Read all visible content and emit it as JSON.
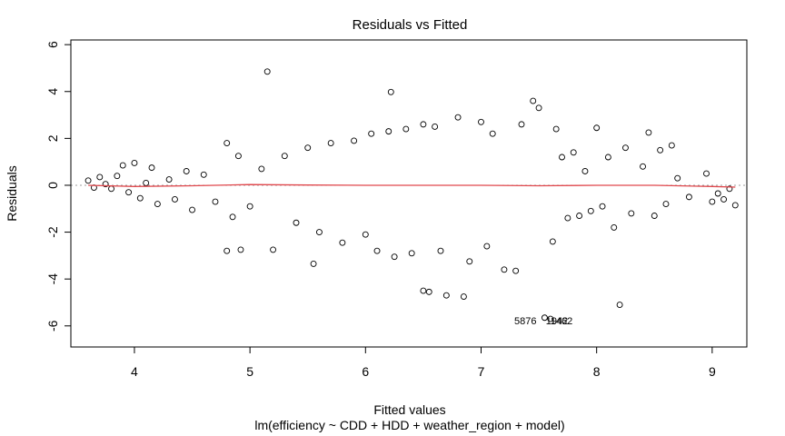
{
  "chart_data": {
    "type": "scatter",
    "title": "Residuals vs Fitted",
    "xlabel": "Fitted values",
    "subtitle": "lm(efficiency ~ CDD + HDD + weather_region + model)",
    "ylabel": "Residuals",
    "xlim": [
      3.45,
      9.3
    ],
    "ylim": [
      -6.9,
      6.2
    ],
    "x_ticks": [
      4,
      5,
      6,
      7,
      8,
      9
    ],
    "y_ticks": [
      -6,
      -4,
      -2,
      0,
      2,
      4,
      6
    ],
    "grid": false,
    "reference_line": {
      "y": 0,
      "style": "dotted",
      "color": "#9e9e9e"
    },
    "smooth_color": "#e0474c",
    "smooth": [
      {
        "x": 3.6,
        "y": 0.0
      },
      {
        "x": 4.0,
        "y": -0.05
      },
      {
        "x": 4.5,
        "y": -0.02
      },
      {
        "x": 5.0,
        "y": 0.03
      },
      {
        "x": 5.5,
        "y": 0.01
      },
      {
        "x": 6.0,
        "y": 0.0
      },
      {
        "x": 6.5,
        "y": 0.0
      },
      {
        "x": 7.0,
        "y": 0.0
      },
      {
        "x": 7.5,
        "y": -0.02
      },
      {
        "x": 8.0,
        "y": 0.0
      },
      {
        "x": 8.5,
        "y": 0.0
      },
      {
        "x": 9.0,
        "y": -0.05
      },
      {
        "x": 9.2,
        "y": -0.08
      }
    ],
    "series": [
      {
        "points": [
          {
            "x": 3.6,
            "y": 0.2
          },
          {
            "x": 3.65,
            "y": -0.1
          },
          {
            "x": 3.7,
            "y": 0.35
          },
          {
            "x": 3.75,
            "y": 0.05
          },
          {
            "x": 3.8,
            "y": -0.15
          },
          {
            "x": 3.85,
            "y": 0.4
          },
          {
            "x": 3.9,
            "y": 0.85
          },
          {
            "x": 3.95,
            "y": -0.3
          },
          {
            "x": 4.0,
            "y": 0.95
          },
          {
            "x": 4.05,
            "y": -0.55
          },
          {
            "x": 4.1,
            "y": 0.1
          },
          {
            "x": 4.15,
            "y": 0.75
          },
          {
            "x": 4.2,
            "y": -0.8
          },
          {
            "x": 4.3,
            "y": 0.25
          },
          {
            "x": 4.35,
            "y": -0.6
          },
          {
            "x": 4.45,
            "y": 0.6
          },
          {
            "x": 4.5,
            "y": -1.05
          },
          {
            "x": 4.6,
            "y": 0.45
          },
          {
            "x": 4.7,
            "y": -0.7
          },
          {
            "x": 4.8,
            "y": 1.8
          },
          {
            "x": 4.85,
            "y": -1.35
          },
          {
            "x": 4.9,
            "y": 1.25
          },
          {
            "x": 4.8,
            "y": -2.8
          },
          {
            "x": 4.92,
            "y": -2.75
          },
          {
            "x": 5.0,
            "y": -0.9
          },
          {
            "x": 5.1,
            "y": 0.7
          },
          {
            "x": 5.15,
            "y": 4.85
          },
          {
            "x": 5.2,
            "y": -2.75
          },
          {
            "x": 5.3,
            "y": 1.25
          },
          {
            "x": 5.4,
            "y": -1.6
          },
          {
            "x": 5.5,
            "y": 1.6
          },
          {
            "x": 5.55,
            "y": -3.35
          },
          {
            "x": 5.6,
            "y": -2.0
          },
          {
            "x": 5.7,
            "y": 1.8
          },
          {
            "x": 5.8,
            "y": -2.45
          },
          {
            "x": 5.9,
            "y": 1.9
          },
          {
            "x": 6.0,
            "y": -2.1
          },
          {
            "x": 6.05,
            "y": 2.2
          },
          {
            "x": 6.1,
            "y": -2.8
          },
          {
            "x": 6.2,
            "y": 2.3
          },
          {
            "x": 6.22,
            "y": 3.98
          },
          {
            "x": 6.25,
            "y": -3.05
          },
          {
            "x": 6.35,
            "y": 2.4
          },
          {
            "x": 6.4,
            "y": -2.9
          },
          {
            "x": 6.5,
            "y": 2.6
          },
          {
            "x": 6.5,
            "y": -4.5
          },
          {
            "x": 6.55,
            "y": -4.55
          },
          {
            "x": 6.6,
            "y": 2.5
          },
          {
            "x": 6.65,
            "y": -2.8
          },
          {
            "x": 6.7,
            "y": -4.7
          },
          {
            "x": 6.8,
            "y": 2.9
          },
          {
            "x": 6.85,
            "y": -4.75
          },
          {
            "x": 6.9,
            "y": -3.25
          },
          {
            "x": 7.0,
            "y": 2.7
          },
          {
            "x": 7.05,
            "y": -2.6
          },
          {
            "x": 7.1,
            "y": 2.2
          },
          {
            "x": 7.2,
            "y": -3.6
          },
          {
            "x": 7.3,
            "y": -3.65
          },
          {
            "x": 7.35,
            "y": 2.6
          },
          {
            "x": 7.45,
            "y": 3.6
          },
          {
            "x": 7.5,
            "y": 3.3
          },
          {
            "x": 7.55,
            "y": -5.65
          },
          {
            "x": 7.6,
            "y": -5.7
          },
          {
            "x": 7.62,
            "y": -2.4
          },
          {
            "x": 7.65,
            "y": 2.4
          },
          {
            "x": 7.7,
            "y": 1.2
          },
          {
            "x": 7.75,
            "y": -1.4
          },
          {
            "x": 7.8,
            "y": 1.4
          },
          {
            "x": 7.85,
            "y": -1.3
          },
          {
            "x": 7.9,
            "y": 0.6
          },
          {
            "x": 7.95,
            "y": -1.1
          },
          {
            "x": 8.0,
            "y": 2.45
          },
          {
            "x": 8.05,
            "y": -0.9
          },
          {
            "x": 8.1,
            "y": 1.2
          },
          {
            "x": 8.15,
            "y": -1.8
          },
          {
            "x": 8.2,
            "y": -5.1
          },
          {
            "x": 8.25,
            "y": 1.6
          },
          {
            "x": 8.3,
            "y": -1.2
          },
          {
            "x": 8.4,
            "y": 0.8
          },
          {
            "x": 8.45,
            "y": 2.25
          },
          {
            "x": 8.5,
            "y": -1.3
          },
          {
            "x": 8.55,
            "y": 1.5
          },
          {
            "x": 8.6,
            "y": -0.8
          },
          {
            "x": 8.65,
            "y": 1.7
          },
          {
            "x": 8.7,
            "y": 0.3
          },
          {
            "x": 8.8,
            "y": -0.5
          },
          {
            "x": 8.95,
            "y": 0.5
          },
          {
            "x": 9.0,
            "y": -0.7
          },
          {
            "x": 9.05,
            "y": -0.35
          },
          {
            "x": 9.1,
            "y": -0.6
          },
          {
            "x": 9.15,
            "y": -0.15
          },
          {
            "x": 9.2,
            "y": -0.85
          }
        ]
      }
    ],
    "annotations": [
      "5876",
      "1942",
      "1462"
    ]
  }
}
